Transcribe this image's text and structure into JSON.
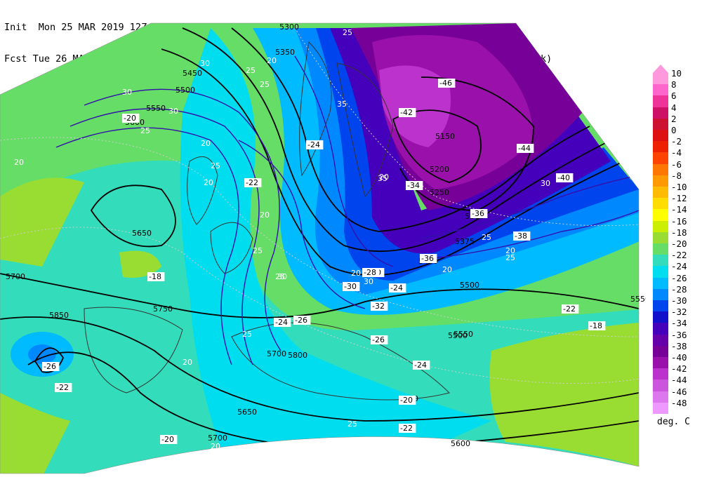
{
  "header": {
    "line1": "Init  Mon 25 MAR 2019 12Z  NCEP GFS wind speed at 500 hPa in m/s (contours/barbs)",
    "line2": "Fcst Tue 26 MAR 2019 06Z  temperature (shaded/dotted) and geopotential height at 500 hPa (black)"
  },
  "legend": {
    "unit_label": "deg. C",
    "levels": [
      {
        "label": "10",
        "color": "#ff99dd"
      },
      {
        "label": "8",
        "color": "#ff66cc"
      },
      {
        "label": "6",
        "color": "#ee3399"
      },
      {
        "label": "4",
        "color": "#cc1166"
      },
      {
        "label": "2",
        "color": "#cc1133"
      },
      {
        "label": "0",
        "color": "#dd1111"
      },
      {
        "label": "-2",
        "color": "#ee2200"
      },
      {
        "label": "-4",
        "color": "#ff4400"
      },
      {
        "label": "-6",
        "color": "#ff7700"
      },
      {
        "label": "-8",
        "color": "#ff9900"
      },
      {
        "label": "-10",
        "color": "#ffbb00"
      },
      {
        "label": "-12",
        "color": "#ffdd00"
      },
      {
        "label": "-14",
        "color": "#ffff00"
      },
      {
        "label": "-16",
        "color": "#ccee00"
      },
      {
        "label": "-18",
        "color": "#99dd33"
      },
      {
        "label": "-20",
        "color": "#66dd66"
      },
      {
        "label": "-22",
        "color": "#33ddbb"
      },
      {
        "label": "-24",
        "color": "#00ddee"
      },
      {
        "label": "-26",
        "color": "#00bbff"
      },
      {
        "label": "-28",
        "color": "#0088ff"
      },
      {
        "label": "-30",
        "color": "#0044ee"
      },
      {
        "label": "-32",
        "color": "#1111cc"
      },
      {
        "label": "-34",
        "color": "#4400bb"
      },
      {
        "label": "-36",
        "color": "#6600aa"
      },
      {
        "label": "-38",
        "color": "#770099"
      },
      {
        "label": "-40",
        "color": "#9911aa"
      },
      {
        "label": "-42",
        "color": "#bb33cc"
      },
      {
        "label": "-44",
        "color": "#cc55dd"
      },
      {
        "label": "-46",
        "color": "#dd77ee"
      },
      {
        "label": "-48",
        "color": "#ee99ff"
      }
    ]
  },
  "map": {
    "height_labels": [
      "5300",
      "5350",
      "5450",
      "5500",
      "5550",
      "5600",
      "5650",
      "5700",
      "5750",
      "5850",
      "5150",
      "5200",
      "5250",
      "5300",
      "5375",
      "5450",
      "5500",
      "5550",
      "5550",
      "5500",
      "5550",
      "5600",
      "5650",
      "5700",
      "5800",
      "5700"
    ],
    "wind_labels": [
      "25",
      "30",
      "25",
      "20",
      "30",
      "25",
      "20",
      "25",
      "20",
      "35",
      "20",
      "25",
      "30",
      "25",
      "20",
      "25",
      "30",
      "20",
      "25",
      "20",
      "35",
      "30",
      "25",
      "20",
      "30",
      "25",
      "20",
      "20",
      "25",
      "20"
    ],
    "temp_labels": [
      "-20",
      "-22",
      "-18",
      "-24",
      "-42",
      "-46",
      "-44",
      "-36",
      "-30",
      "-32",
      "-30",
      "-26",
      "-24",
      "-22",
      "-20",
      "-18",
      "-26",
      "-24",
      "-22",
      "-20",
      "-34",
      "-36",
      "-38",
      "-40",
      "-28",
      "-22",
      "-24",
      "-26"
    ]
  }
}
